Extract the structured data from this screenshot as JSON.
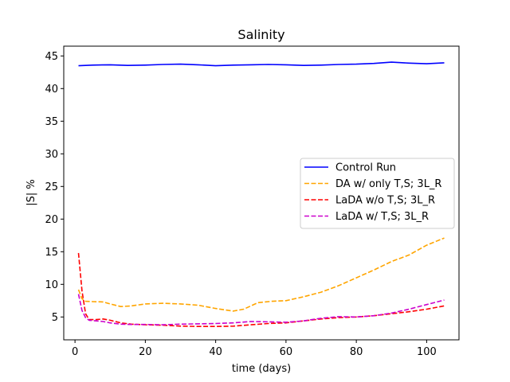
{
  "chart_data": {
    "type": "line",
    "title": "Salinity",
    "xlabel": "time (days)",
    "ylabel": "|S| %",
    "xlim": [
      -3.2,
      109.2
    ],
    "ylim": [
      1.5,
      46.5
    ],
    "x_ticks": [
      0,
      20,
      40,
      60,
      80,
      100
    ],
    "y_ticks": [
      5,
      10,
      15,
      20,
      25,
      30,
      35,
      40,
      45
    ],
    "grid": false,
    "legend_position": "center-right",
    "series": [
      {
        "name": "Control Run",
        "color": "#0000ff",
        "dash": "solid",
        "x": [
          1,
          5,
          10,
          15,
          20,
          25,
          30,
          35,
          40,
          45,
          50,
          55,
          60,
          65,
          70,
          75,
          80,
          85,
          90,
          95,
          100,
          105
        ],
        "y": [
          43.5,
          43.6,
          43.65,
          43.55,
          43.6,
          43.7,
          43.75,
          43.65,
          43.5,
          43.6,
          43.65,
          43.7,
          43.65,
          43.55,
          43.6,
          43.7,
          43.75,
          43.85,
          44.05,
          43.9,
          43.8,
          43.95
        ]
      },
      {
        "name": "DA w/ only T,S; 3L_R",
        "color": "#ffa500",
        "dash": "dashed",
        "x": [
          1,
          2,
          3,
          5,
          8,
          10,
          13,
          16,
          20,
          25,
          30,
          35,
          40,
          45,
          48,
          52,
          56,
          60,
          65,
          70,
          75,
          80,
          85,
          90,
          95,
          100,
          105
        ],
        "y": [
          9.2,
          7.8,
          7.4,
          7.35,
          7.3,
          7.0,
          6.6,
          6.7,
          7.0,
          7.1,
          7.0,
          6.8,
          6.3,
          5.9,
          6.2,
          7.2,
          7.4,
          7.5,
          8.1,
          8.8,
          9.8,
          11.0,
          12.2,
          13.5,
          14.5,
          16.0,
          17.1
        ]
      },
      {
        "name": "LaDA w/o T,S; 3L_R",
        "color": "#ff0000",
        "dash": "dashed",
        "x": [
          1,
          2,
          3,
          4,
          6,
          8,
          10,
          13,
          16,
          20,
          25,
          30,
          35,
          40,
          45,
          50,
          55,
          60,
          65,
          70,
          75,
          80,
          85,
          90,
          95,
          100,
          105
        ],
        "y": [
          14.8,
          9.0,
          5.5,
          4.6,
          4.6,
          4.7,
          4.5,
          4.1,
          3.9,
          3.8,
          3.75,
          3.6,
          3.55,
          3.55,
          3.6,
          3.8,
          4.0,
          4.1,
          4.4,
          4.7,
          4.9,
          5.0,
          5.2,
          5.5,
          5.8,
          6.2,
          6.7
        ]
      },
      {
        "name": "LaDA w/ T,S; 3L_R",
        "color": "#cc00cc",
        "dash": "dashed",
        "x": [
          1,
          2,
          3,
          4,
          6,
          8,
          10,
          13,
          16,
          20,
          25,
          30,
          35,
          40,
          45,
          50,
          55,
          60,
          65,
          70,
          75,
          80,
          85,
          90,
          95,
          100,
          105
        ],
        "y": [
          8.5,
          6.0,
          4.9,
          4.5,
          4.4,
          4.3,
          4.1,
          3.9,
          3.85,
          3.85,
          3.8,
          3.9,
          3.95,
          4.0,
          4.1,
          4.3,
          4.25,
          4.2,
          4.4,
          4.8,
          5.05,
          5.0,
          5.2,
          5.6,
          6.2,
          6.9,
          7.6
        ]
      }
    ]
  }
}
